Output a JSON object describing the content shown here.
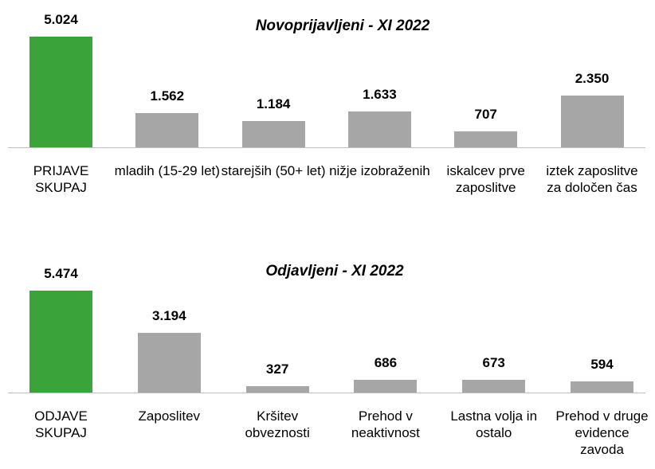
{
  "chart_data": [
    {
      "type": "bar",
      "title": "Novoprijavljeni - XI 2022",
      "categories": [
        "PRIJAVE SKUPAJ",
        "mladih (15-29 let)",
        "starejših (50+ let)",
        "nižje izobraženih",
        "iskalcev prve zaposlitve",
        "iztek zaposlitve za določen čas"
      ],
      "values": [
        5024,
        1562,
        1184,
        1633,
        707,
        2350
      ],
      "value_labels": [
        "5.024",
        "1.562",
        "1.184",
        "1.633",
        "707",
        "2.350"
      ],
      "colors": [
        "#3aa33a",
        "#a6a6a6",
        "#a6a6a6",
        "#a6a6a6",
        "#a6a6a6",
        "#a6a6a6"
      ]
    },
    {
      "type": "bar",
      "title": "Odjavljeni - XI 2022",
      "categories": [
        "ODJAVE SKUPAJ",
        "Zaposlitev",
        "Kršitev obveznosti",
        "Prehod v neaktivnost",
        "Lastna volja in ostalo",
        "Prehod v druge evidence zavoda"
      ],
      "values": [
        5474,
        3194,
        327,
        686,
        673,
        594
      ],
      "value_labels": [
        "5.474",
        "3.194",
        "327",
        "686",
        "673",
        "594"
      ],
      "colors": [
        "#3aa33a",
        "#a6a6a6",
        "#a6a6a6",
        "#a6a6a6",
        "#a6a6a6",
        "#a6a6a6"
      ]
    }
  ]
}
